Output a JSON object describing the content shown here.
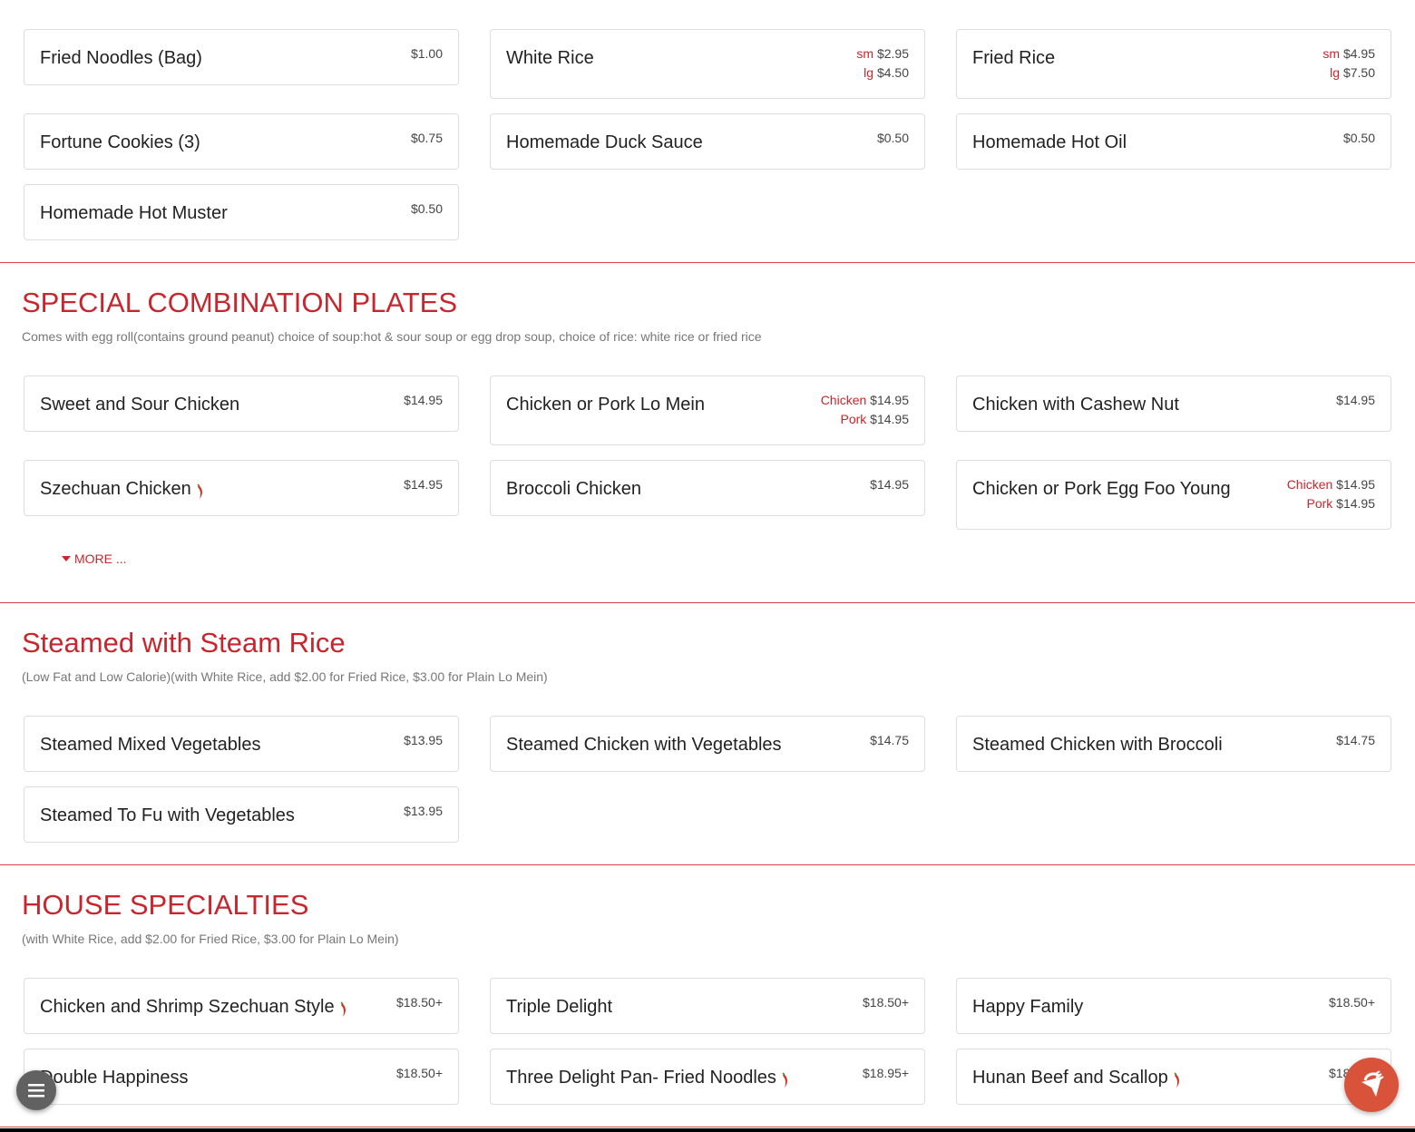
{
  "sections": [
    {
      "title": "",
      "description": "",
      "items": [
        {
          "name": "Fried Noodles (Bag)",
          "prices": [
            {
              "label": "",
              "price": "$1.00"
            }
          ]
        },
        {
          "name": "White Rice",
          "prices": [
            {
              "label": "sm",
              "price": "$2.95"
            },
            {
              "label": "lg",
              "price": "$4.50"
            }
          ]
        },
        {
          "name": "Fried Rice",
          "prices": [
            {
              "label": "sm",
              "price": "$4.95"
            },
            {
              "label": "lg",
              "price": "$7.50"
            }
          ]
        },
        {
          "name": "Fortune Cookies (3)",
          "prices": [
            {
              "label": "",
              "price": "$0.75"
            }
          ]
        },
        {
          "name": "Homemade Duck Sauce",
          "prices": [
            {
              "label": "",
              "price": "$0.50"
            }
          ]
        },
        {
          "name": "Homemade Hot Oil",
          "prices": [
            {
              "label": "",
              "price": "$0.50"
            }
          ]
        },
        {
          "name": "Homemade Hot Muster",
          "prices": [
            {
              "label": "",
              "price": "$0.50"
            }
          ]
        }
      ]
    },
    {
      "title": "SPECIAL COMBINATION PLATES",
      "description": "Comes with egg roll(contains ground peanut) choice of soup:hot & sour soup or egg drop soup, choice of rice: white rice or fried rice",
      "more": "MORE ...",
      "items": [
        {
          "name": "Sweet and Sour Chicken",
          "prices": [
            {
              "label": "",
              "price": "$14.95"
            }
          ]
        },
        {
          "name": "Chicken or Pork Lo Mein",
          "prices": [
            {
              "label": "Chicken",
              "price": "$14.95"
            },
            {
              "label": "Pork",
              "price": "$14.95"
            }
          ]
        },
        {
          "name": "Chicken with Cashew Nut",
          "prices": [
            {
              "label": "",
              "price": "$14.95"
            }
          ]
        },
        {
          "name": "Szechuan Chicken",
          "spicy": true,
          "prices": [
            {
              "label": "",
              "price": "$14.95"
            }
          ]
        },
        {
          "name": "Broccoli Chicken",
          "prices": [
            {
              "label": "",
              "price": "$14.95"
            }
          ]
        },
        {
          "name": "Chicken or Pork Egg Foo Young",
          "prices": [
            {
              "label": "Chicken",
              "price": "$14.95"
            },
            {
              "label": "Pork",
              "price": "$14.95"
            }
          ]
        }
      ]
    },
    {
      "title": "Steamed with Steam Rice",
      "description": "(Low Fat and Low Calorie)(with White Rice, add $2.00 for Fried Rice, $3.00 for Plain Lo Mein)",
      "items": [
        {
          "name": "Steamed Mixed Vegetables",
          "prices": [
            {
              "label": "",
              "price": "$13.95"
            }
          ]
        },
        {
          "name": "Steamed Chicken with Vegetables",
          "prices": [
            {
              "label": "",
              "price": "$14.75"
            }
          ]
        },
        {
          "name": "Steamed Chicken with Broccoli",
          "prices": [
            {
              "label": "",
              "price": "$14.75"
            }
          ]
        },
        {
          "name": "Steamed To Fu with Vegetables",
          "prices": [
            {
              "label": "",
              "price": "$13.95"
            }
          ]
        }
      ]
    },
    {
      "title": "HOUSE SPECIALTIES",
      "description": "(with White Rice, add $2.00 for Fried Rice, $3.00 for Plain Lo Mein)",
      "items": [
        {
          "name": "Chicken and Shrimp Szechuan Style",
          "spicy": true,
          "prices": [
            {
              "label": "",
              "price": "$18.50+"
            }
          ]
        },
        {
          "name": "Triple Delight",
          "prices": [
            {
              "label": "",
              "price": "$18.50+"
            }
          ]
        },
        {
          "name": "Happy Family",
          "prices": [
            {
              "label": "",
              "price": "$18.50+"
            }
          ]
        },
        {
          "name": "Double Happiness",
          "prices": [
            {
              "label": "",
              "price": "$18.50+"
            }
          ]
        },
        {
          "name": "Three Delight Pan- Fried Noodles",
          "spicy": true,
          "prices": [
            {
              "label": "",
              "price": "$18.95+"
            }
          ]
        },
        {
          "name": "Hunan Beef and Scallop",
          "spicy": true,
          "prices": [
            {
              "label": "",
              "price": "$18.50+"
            }
          ]
        }
      ]
    }
  ],
  "icons": {
    "spicy": "chili-pepper-icon",
    "menu": "hamburger-menu-icon",
    "order": "order-online-icon"
  },
  "colors": {
    "accent": "#c8262c",
    "fab_order": "#d9533b",
    "fab_menu": "#616161"
  }
}
